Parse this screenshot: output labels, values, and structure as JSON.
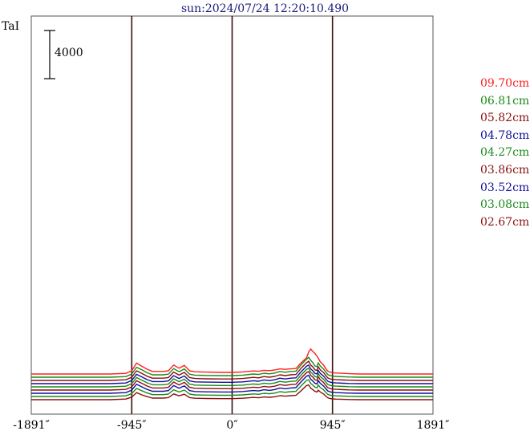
{
  "title": "sun:2024/07/24 12:20:10.490",
  "chart_data": {
    "type": "line",
    "ylabel": "TaI",
    "scale_bar": {
      "value": 4000,
      "label": "4000"
    },
    "xlim": [
      -1891,
      1891
    ],
    "x_ticks": [
      {
        "value": -1891,
        "label": "-1891″"
      },
      {
        "value": -945,
        "label": "-945″"
      },
      {
        "value": 0,
        "label": "0″"
      },
      {
        "value": 945,
        "label": "945″"
      },
      {
        "value": 1891,
        "label": "1891″"
      }
    ],
    "vertical_lines": [
      -945,
      0,
      945
    ],
    "profile_points": [
      -1891,
      -1150,
      -1000,
      -945,
      -900,
      -850,
      -800,
      -750,
      -650,
      -600,
      -550,
      -500,
      -450,
      -400,
      -350,
      -250,
      -100,
      0,
      100,
      200,
      250,
      300,
      350,
      400,
      450,
      500,
      550,
      600,
      650,
      700,
      720,
      740,
      760,
      780,
      800,
      810,
      830,
      860,
      880,
      900,
      920,
      945,
      980,
      1050,
      1100,
      1200,
      1891
    ],
    "series": [
      {
        "name": "09.70cm",
        "color": "#ff2020",
        "offset": 8000,
        "values": [
          0,
          0,
          200,
          1000,
          3400,
          2400,
          1500,
          800,
          800,
          1000,
          2800,
          1800,
          2700,
          1000,
          700,
          600,
          500,
          500,
          650,
          950,
          850,
          1150,
          1050,
          1250,
          1600,
          1450,
          1600,
          1700,
          3500,
          5000,
          6800,
          7800,
          7000,
          6400,
          5500,
          5000,
          3800,
          2800,
          1800,
          900,
          600,
          400,
          300,
          200,
          100,
          0,
          0
        ]
      },
      {
        "name": "06.81cm",
        "color": "#1a8a1a",
        "offset": 7000,
        "values": [
          0,
          0,
          200,
          1000,
          3100,
          2300,
          1400,
          750,
          750,
          950,
          2700,
          1700,
          2600,
          950,
          650,
          550,
          500,
          500,
          650,
          1000,
          850,
          1250,
          1050,
          1300,
          1800,
          1550,
          1800,
          1900,
          3900,
          5600,
          6200,
          5300,
          4500,
          3500,
          3300,
          4500,
          3500,
          2600,
          1700,
          850,
          550,
          350,
          250,
          150,
          80,
          0,
          0
        ]
      },
      {
        "name": "05.82cm",
        "color": "#8b1010",
        "offset": 6000,
        "values": [
          0,
          0,
          200,
          1000,
          3000,
          2200,
          1300,
          700,
          700,
          900,
          2600,
          1650,
          2500,
          900,
          600,
          500,
          450,
          450,
          600,
          950,
          800,
          1200,
          1000,
          1250,
          1750,
          1500,
          1750,
          1850,
          3800,
          5500,
          6000,
          4800,
          4200,
          3300,
          3100,
          4300,
          3300,
          2500,
          1600,
          800,
          500,
          330,
          230,
          130,
          70,
          0,
          0
        ]
      },
      {
        "name": "04.78cm",
        "color": "#10109a",
        "offset": 5000,
        "values": [
          0,
          0,
          200,
          1000,
          2900,
          2100,
          1250,
          650,
          650,
          850,
          2500,
          1600,
          2400,
          850,
          560,
          480,
          420,
          420,
          560,
          900,
          750,
          1150,
          950,
          1200,
          1700,
          1450,
          1700,
          1800,
          3700,
          5400,
          5800,
          4600,
          4000,
          3200,
          3000,
          4200,
          3200,
          2400,
          1550,
          780,
          480,
          310,
          220,
          120,
          60,
          0,
          0
        ]
      },
      {
        "name": "04.27cm",
        "color": "#1a8a1a",
        "offset": 4000,
        "values": [
          0,
          0,
          200,
          1000,
          2900,
          2100,
          1250,
          650,
          650,
          850,
          2500,
          1600,
          2400,
          850,
          560,
          480,
          420,
          420,
          560,
          900,
          750,
          1150,
          950,
          1200,
          1700,
          1450,
          1700,
          1800,
          3700,
          5400,
          5800,
          4600,
          4000,
          3200,
          3000,
          4200,
          3200,
          2400,
          1550,
          780,
          480,
          310,
          220,
          120,
          60,
          0,
          0
        ]
      },
      {
        "name": "03.86cm",
        "color": "#8b1010",
        "offset": 3000,
        "values": [
          0,
          0,
          200,
          1000,
          2900,
          2100,
          1250,
          650,
          650,
          850,
          2500,
          1600,
          2400,
          850,
          560,
          480,
          420,
          420,
          560,
          900,
          750,
          1150,
          950,
          1200,
          1700,
          1450,
          1700,
          1800,
          3700,
          5400,
          5800,
          4600,
          4000,
          3200,
          3000,
          4200,
          3200,
          2400,
          1550,
          780,
          480,
          310,
          220,
          120,
          60,
          0,
          0
        ]
      },
      {
        "name": "03.52cm",
        "color": "#10109a",
        "offset": 2000,
        "values": [
          0,
          0,
          200,
          1000,
          2800,
          2000,
          1200,
          620,
          620,
          820,
          2400,
          1550,
          2300,
          820,
          540,
          460,
          400,
          400,
          540,
          860,
          720,
          1100,
          900,
          1150,
          1650,
          1400,
          1650,
          1750,
          3600,
          5300,
          5600,
          4400,
          3800,
          3100,
          2900,
          4000,
          3100,
          2300,
          1500,
          750,
          460,
          300,
          210,
          110,
          55,
          0,
          0
        ]
      },
      {
        "name": "03.08cm",
        "color": "#1a8a1a",
        "offset": 1000,
        "values": [
          0,
          0,
          200,
          900,
          2500,
          1800,
          1100,
          580,
          580,
          760,
          2100,
          1400,
          2000,
          760,
          500,
          430,
          380,
          380,
          500,
          800,
          680,
          1000,
          850,
          1050,
          1500,
          1300,
          1500,
          1600,
          3300,
          5000,
          5200,
          4100,
          3500,
          2900,
          2700,
          3600,
          2800,
          2100,
          1350,
          680,
          420,
          270,
          190,
          100,
          50,
          0,
          0
        ]
      },
      {
        "name": "02.67cm",
        "color": "#8b1010",
        "offset": 0,
        "values": [
          0,
          0,
          200,
          800,
          2200,
          1500,
          950,
          500,
          500,
          650,
          1800,
          1200,
          1700,
          650,
          450,
          380,
          330,
          330,
          450,
          700,
          600,
          850,
          750,
          900,
          1250,
          1100,
          1250,
          1350,
          2800,
          4400,
          4600,
          3600,
          3100,
          2600,
          2400,
          3000,
          2400,
          1800,
          1150,
          600,
          370,
          240,
          170,
          90,
          45,
          0,
          0
        ]
      }
    ]
  }
}
